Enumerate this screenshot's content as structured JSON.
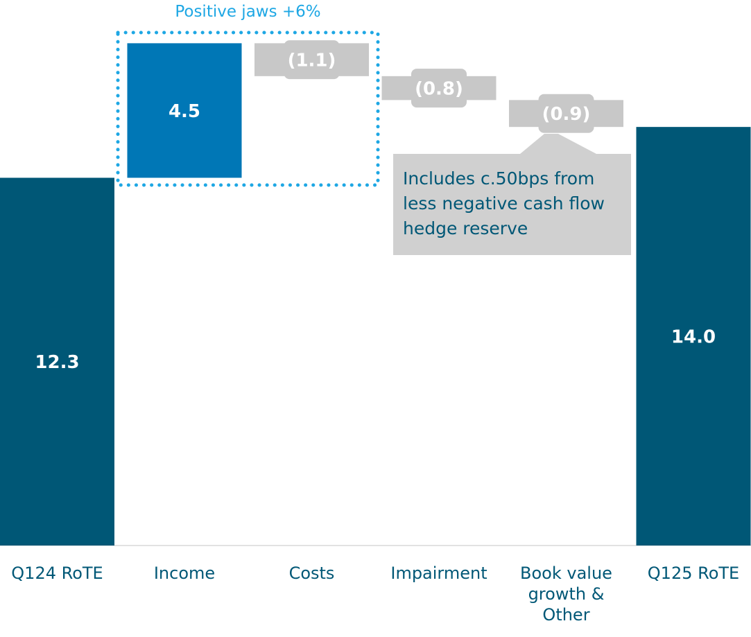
{
  "chart_data": {
    "type": "waterfall",
    "categories": [
      "Q124 RoTE",
      "Income",
      "Costs",
      "Impairment",
      "Book value growth & Other",
      "Q125 RoTE"
    ],
    "values": [
      12.3,
      4.5,
      -1.1,
      -0.8,
      -0.9,
      14.0
    ],
    "value_labels": [
      "12.3",
      "4.5",
      "(1.1)",
      "(0.8)",
      "(0.9)",
      "14.0"
    ],
    "colors": [
      "#005776",
      "#0077b6",
      "#c8c8c8",
      "#c8c8c8",
      "#c8c8c8",
      "#005776"
    ],
    "ylim": [
      0,
      18.2
    ],
    "annotations": [
      "Positive jaws +6%",
      "Includes c.50bps from less negative cash flow hedge reserve"
    ]
  }
}
